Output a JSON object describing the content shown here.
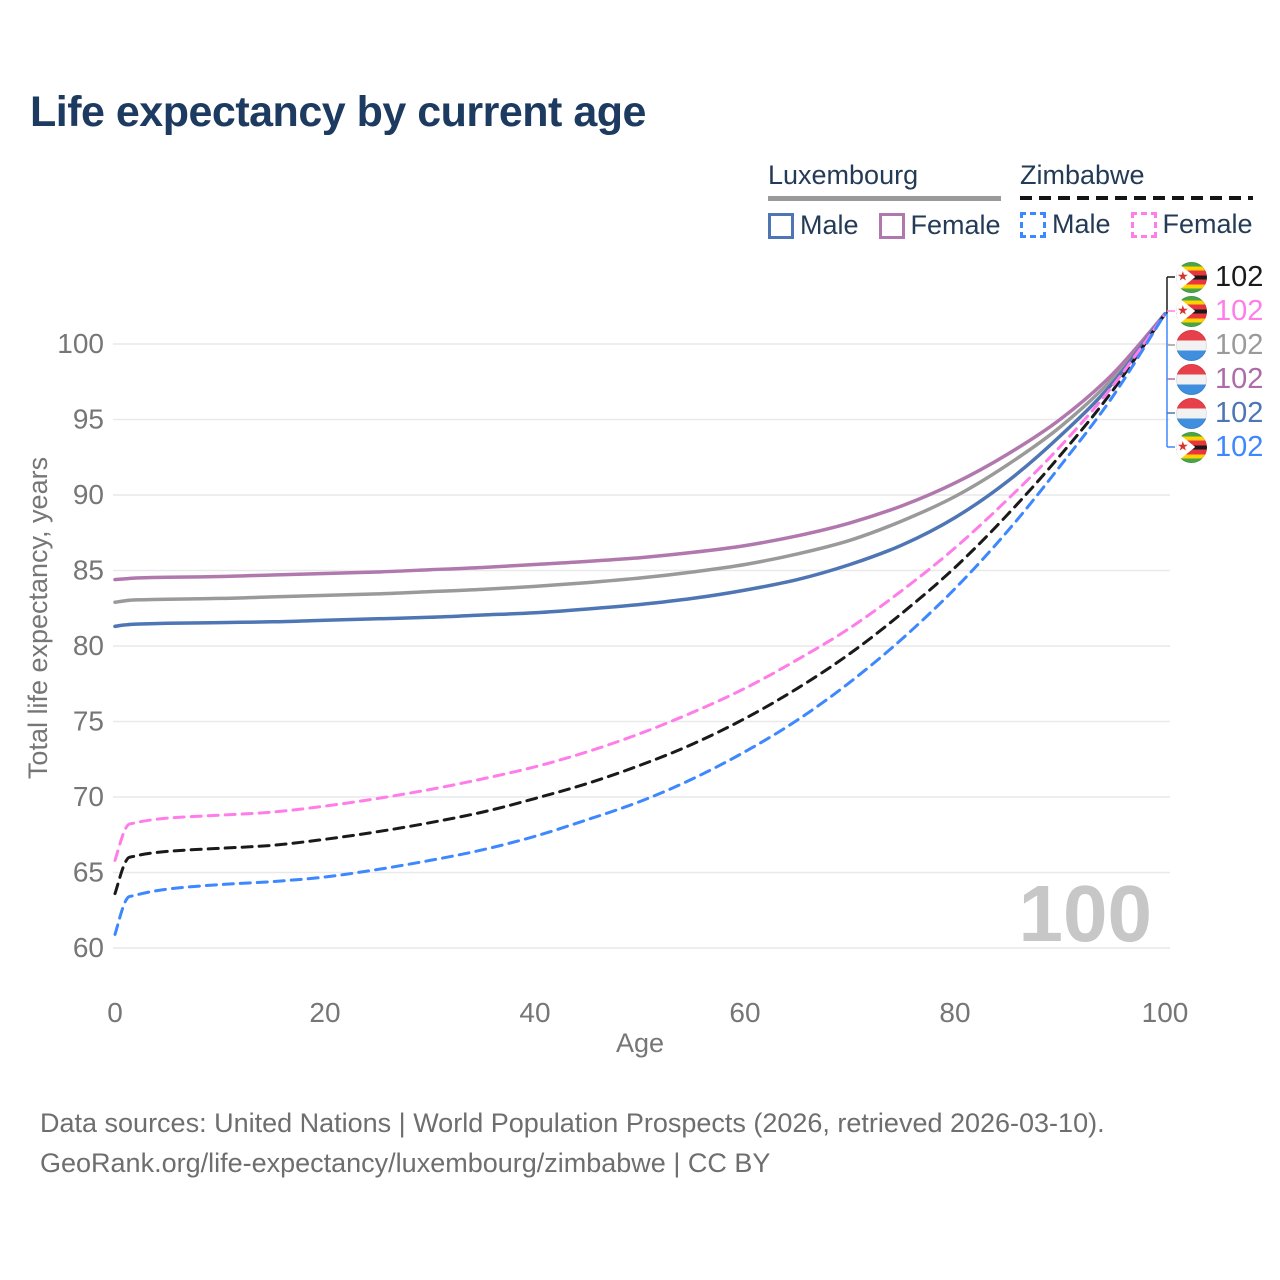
{
  "title": "Life expectancy by current age",
  "legend": {
    "groups": [
      {
        "name": "Luxembourg",
        "line_style": "solid",
        "underline_color": "#9a9a9a",
        "items": [
          {
            "label": "Male",
            "color": "#4e76b4",
            "dashed": false
          },
          {
            "label": "Female",
            "color": "#b178ae",
            "dashed": false
          }
        ]
      },
      {
        "name": "Zimbabwe",
        "line_style": "dashed",
        "underline_color": "#141414",
        "items": [
          {
            "label": "Male",
            "color": "#3d87ff",
            "dashed": true
          },
          {
            "label": "Female",
            "color": "#ff7de9",
            "dashed": true
          }
        ]
      }
    ]
  },
  "chart_data": {
    "type": "line",
    "title": "Life expectancy by current age",
    "xlabel": "Age",
    "ylabel": "Total life expectancy, years",
    "xlim": [
      0,
      100
    ],
    "ylim": [
      60,
      100
    ],
    "xticks": [
      0,
      20,
      40,
      60,
      80,
      100
    ],
    "yticks": [
      60,
      65,
      70,
      75,
      80,
      85,
      90,
      95,
      100
    ],
    "grid": "horizontal",
    "legend_position": "top-right",
    "watermark": "100",
    "x": [
      0,
      1,
      2,
      5,
      10,
      15,
      20,
      25,
      30,
      35,
      40,
      45,
      50,
      55,
      60,
      65,
      70,
      75,
      80,
      85,
      90,
      95,
      100
    ],
    "series": [
      {
        "name": "Luxembourg Total",
        "country": "Luxembourg",
        "sex": "total",
        "color": "#9a9a9a",
        "dashed": false,
        "values": [
          82.9,
          83.0,
          83.05,
          83.1,
          83.15,
          83.25,
          83.35,
          83.45,
          83.6,
          83.75,
          83.95,
          84.2,
          84.5,
          84.9,
          85.4,
          86.1,
          87.0,
          88.3,
          89.9,
          92.0,
          94.5,
          97.7,
          102
        ]
      },
      {
        "name": "Luxembourg Female",
        "country": "Luxembourg",
        "sex": "female",
        "color": "#b178ae",
        "dashed": false,
        "values": [
          84.4,
          84.45,
          84.5,
          84.55,
          84.6,
          84.7,
          84.8,
          84.9,
          85.05,
          85.2,
          85.4,
          85.6,
          85.85,
          86.2,
          86.65,
          87.3,
          88.15,
          89.3,
          90.8,
          92.7,
          95.0,
          98.0,
          102
        ]
      },
      {
        "name": "Luxembourg Male",
        "country": "Luxembourg",
        "sex": "male",
        "color": "#4e76b4",
        "dashed": false,
        "values": [
          81.3,
          81.4,
          81.45,
          81.5,
          81.55,
          81.6,
          81.7,
          81.8,
          81.9,
          82.05,
          82.2,
          82.45,
          82.75,
          83.15,
          83.7,
          84.4,
          85.4,
          86.7,
          88.5,
          90.9,
          93.9,
          97.4,
          102
        ]
      },
      {
        "name": "Zimbabwe Total",
        "country": "Zimbabwe",
        "sex": "total",
        "color": "#1a1a1a",
        "dashed": true,
        "values": [
          63.6,
          65.7,
          66.1,
          66.4,
          66.6,
          66.8,
          67.2,
          67.7,
          68.3,
          69.0,
          69.9,
          70.9,
          72.1,
          73.5,
          75.2,
          77.2,
          79.5,
          82.2,
          85.2,
          88.7,
          92.6,
          96.9,
          102
        ]
      },
      {
        "name": "Zimbabwe Female",
        "country": "Zimbabwe",
        "sex": "female",
        "color": "#ff7de9",
        "dashed": true,
        "values": [
          65.8,
          67.9,
          68.3,
          68.6,
          68.8,
          69.0,
          69.4,
          69.9,
          70.5,
          71.2,
          72.0,
          73.0,
          74.2,
          75.6,
          77.2,
          79.1,
          81.2,
          83.7,
          86.5,
          89.7,
          93.2,
          97.2,
          102
        ]
      },
      {
        "name": "Zimbabwe Male",
        "country": "Zimbabwe",
        "sex": "male",
        "color": "#3d87ff",
        "dashed": true,
        "values": [
          60.9,
          63.1,
          63.5,
          63.9,
          64.2,
          64.4,
          64.7,
          65.2,
          65.8,
          66.5,
          67.4,
          68.5,
          69.7,
          71.2,
          73.0,
          75.1,
          77.6,
          80.5,
          83.8,
          87.6,
          91.9,
          96.5,
          102
        ]
      }
    ],
    "end_labels": [
      {
        "flag": "zw",
        "series": "Zimbabwe Total",
        "text": "102",
        "color": "#1a1a1a"
      },
      {
        "flag": "zw",
        "series": "Zimbabwe Female",
        "text": "102",
        "color": "#ff7de9"
      },
      {
        "flag": "lu",
        "series": "Luxembourg Total",
        "text": "102",
        "color": "#9a9a9a"
      },
      {
        "flag": "lu",
        "series": "Luxembourg Female",
        "text": "102",
        "color": "#ad6ca8"
      },
      {
        "flag": "lu",
        "series": "Luxembourg Male",
        "text": "102",
        "color": "#4e76b4"
      },
      {
        "flag": "zw",
        "series": "Zimbabwe Male",
        "text": "102",
        "color": "#3d87ff"
      }
    ]
  },
  "footer": {
    "line1": "Data sources: United Nations | World Population Prospects (2026, retrieved 2026-03-10).",
    "line2": "GeoRank.org/life-expectancy/luxembourg/zimbabwe | CC BY"
  }
}
